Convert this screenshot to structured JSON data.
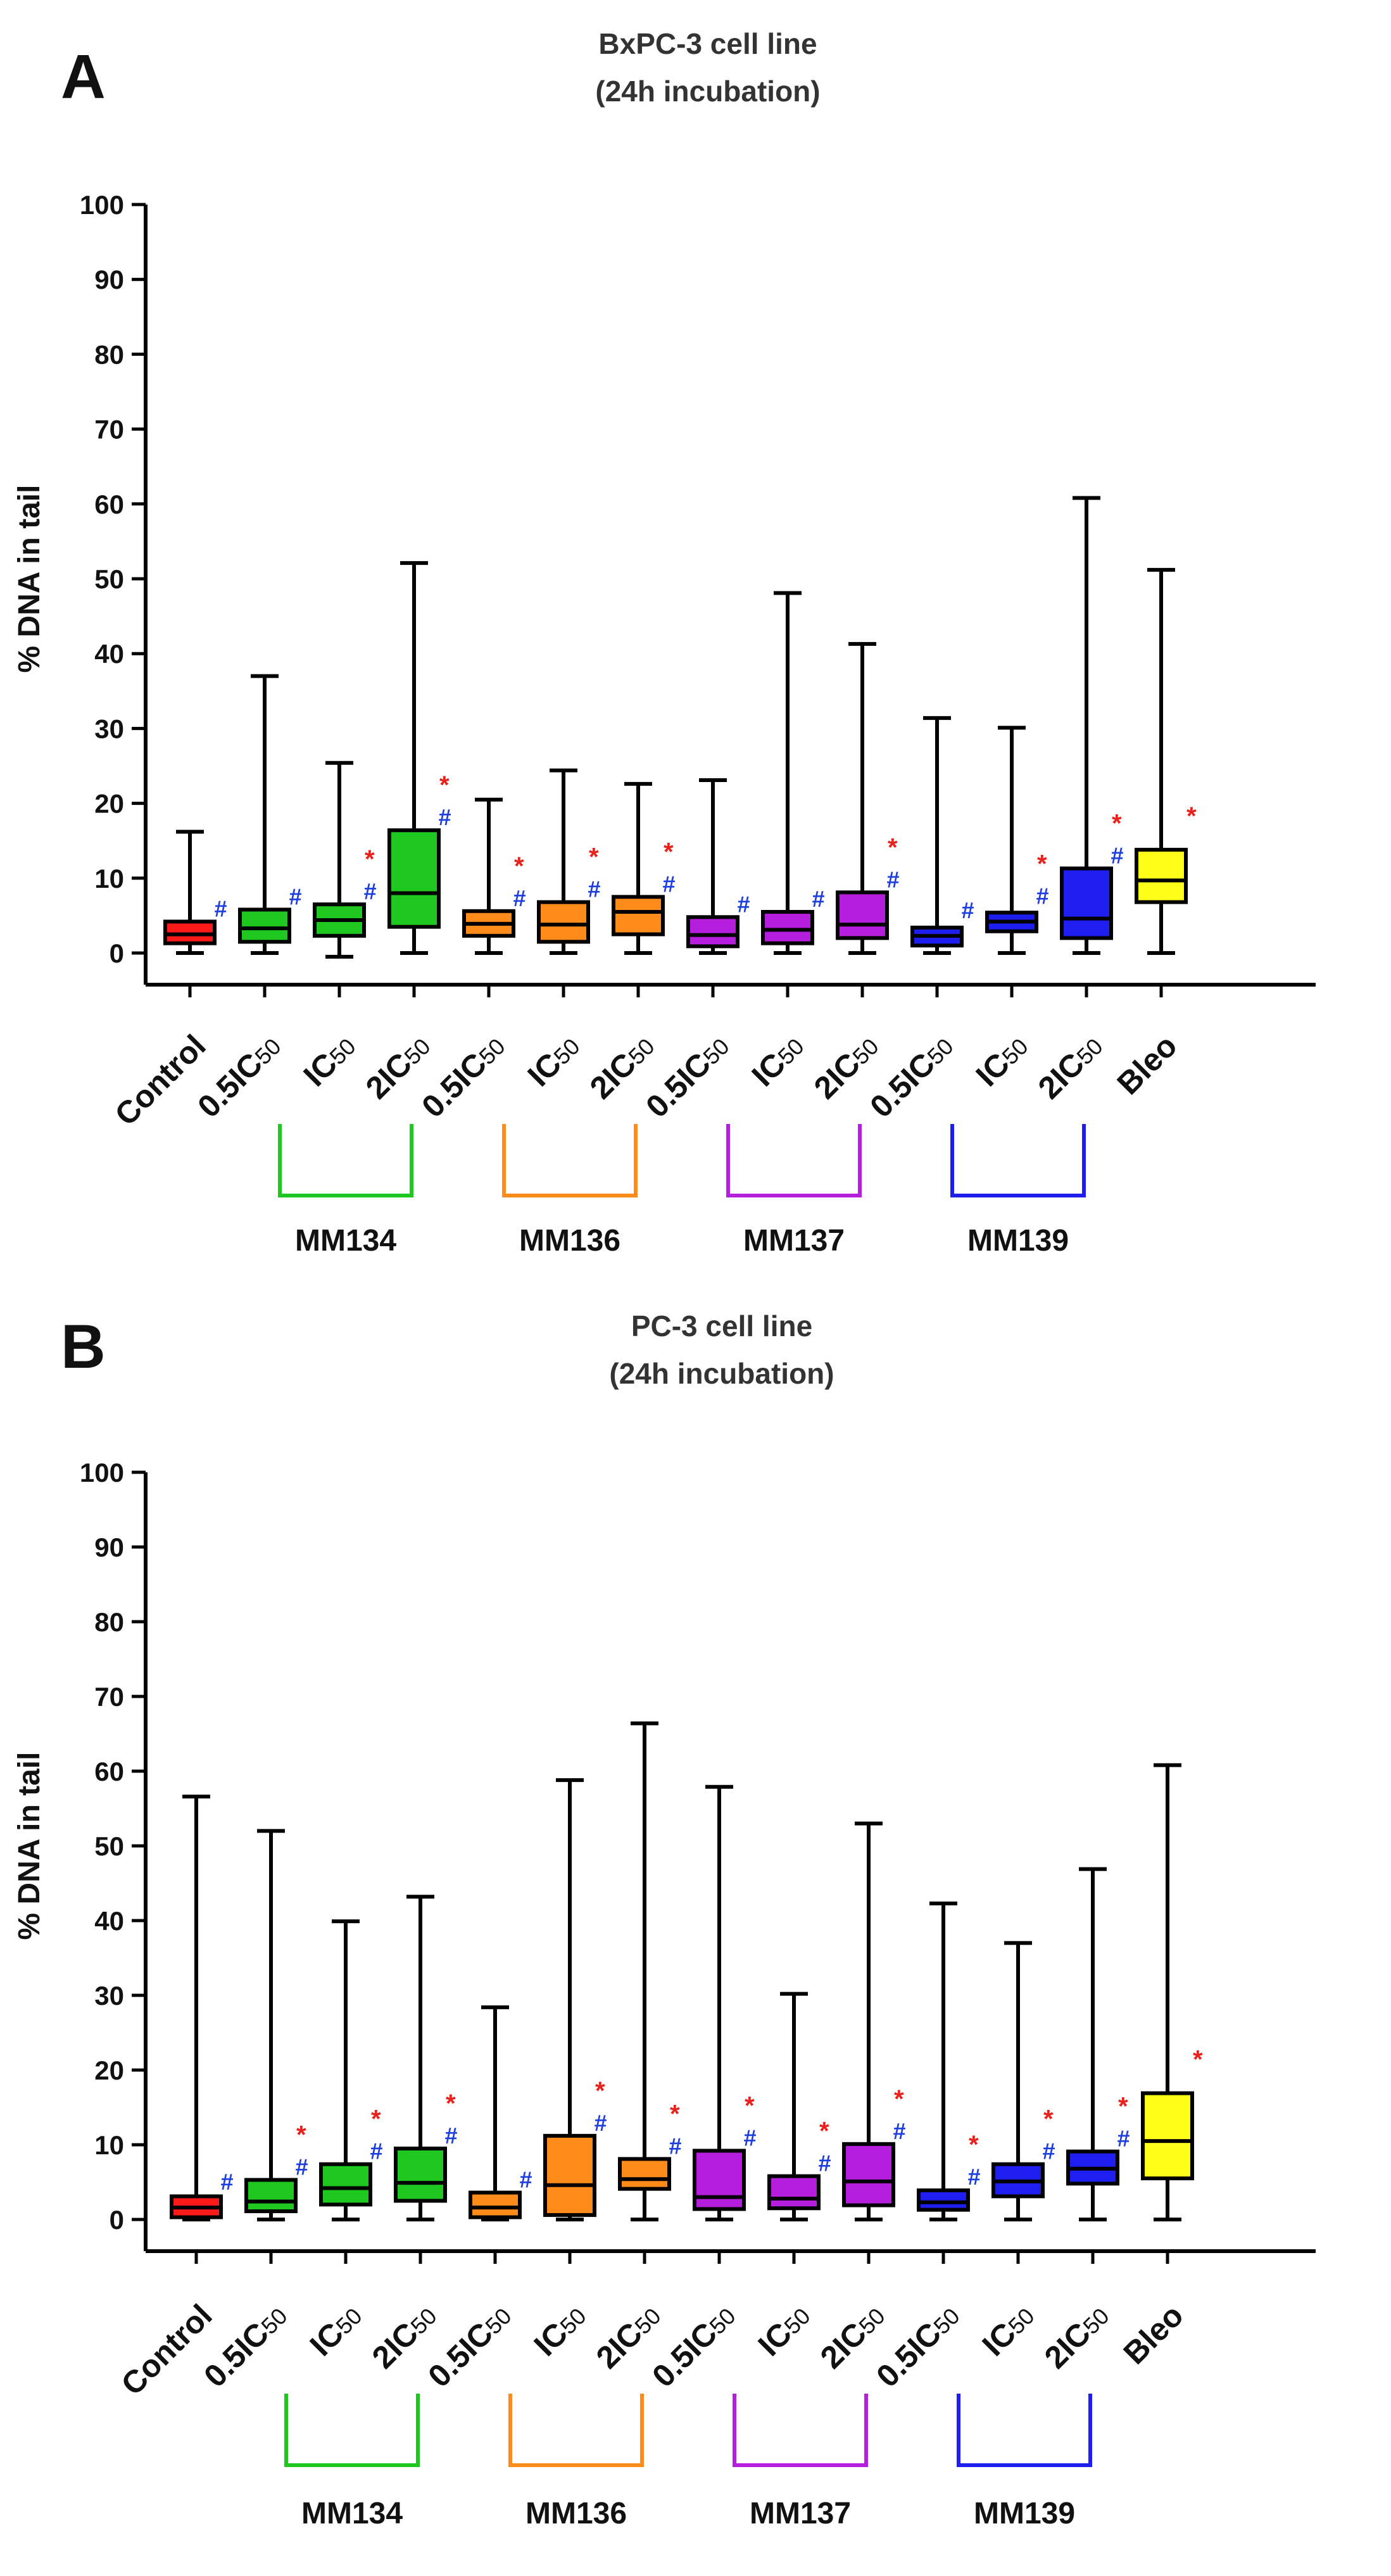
{
  "chart_data": [
    {
      "panel_label": "A",
      "type": "boxplot",
      "title": "BxPC-3 cell line",
      "subtitle": "(24h incubation)",
      "ylabel": "% DNA in tail",
      "xlabel": "",
      "ylim": [
        0,
        100
      ],
      "yticks": [
        0,
        10,
        20,
        30,
        40,
        50,
        60,
        70,
        80,
        90,
        100
      ],
      "grid": false,
      "categories": [
        {
          "main": "Control",
          "sub": ""
        },
        {
          "main": "0.5IC",
          "sub": "50"
        },
        {
          "main": "IC",
          "sub": "50"
        },
        {
          "main": "2IC",
          "sub": "50"
        },
        {
          "main": "0.5IC",
          "sub": "50"
        },
        {
          "main": "IC",
          "sub": "50"
        },
        {
          "main": "2IC",
          "sub": "50"
        },
        {
          "main": "0.5IC",
          "sub": "50"
        },
        {
          "main": "IC",
          "sub": "50"
        },
        {
          "main": "2IC",
          "sub": "50"
        },
        {
          "main": "0.5IC",
          "sub": "50"
        },
        {
          "main": "IC",
          "sub": "50"
        },
        {
          "main": "2IC",
          "sub": "50"
        },
        {
          "main": "Bleo",
          "sub": ""
        }
      ],
      "boxes": [
        {
          "min": 0,
          "q1": 1.3,
          "median": 2.5,
          "q3": 4.2,
          "max": 16.2,
          "color": "#ff1a1a",
          "star": false,
          "hash": true
        },
        {
          "min": 0,
          "q1": 1.5,
          "median": 3.3,
          "q3": 5.8,
          "max": 37.0,
          "color": "#1ec81e",
          "star": false,
          "hash": true
        },
        {
          "min": -0.5,
          "q1": 2.3,
          "median": 4.4,
          "q3": 6.5,
          "max": 25.4,
          "color": "#1ec81e",
          "star": true,
          "hash": true
        },
        {
          "min": 0,
          "q1": 3.5,
          "median": 8.0,
          "q3": 16.4,
          "max": 52.1,
          "color": "#1ec81e",
          "star": true,
          "hash": true
        },
        {
          "min": 0,
          "q1": 2.3,
          "median": 3.9,
          "q3": 5.6,
          "max": 20.5,
          "color": "#ff8c1a",
          "star": true,
          "hash": true
        },
        {
          "min": 0,
          "q1": 1.5,
          "median": 3.8,
          "q3": 6.8,
          "max": 24.4,
          "color": "#ff8c1a",
          "star": true,
          "hash": true
        },
        {
          "min": 0,
          "q1": 2.5,
          "median": 5.5,
          "q3": 7.5,
          "max": 22.6,
          "color": "#ff8c1a",
          "star": true,
          "hash": true
        },
        {
          "min": 0,
          "q1": 0.9,
          "median": 2.4,
          "q3": 4.8,
          "max": 23.1,
          "color": "#b41edc",
          "star": false,
          "hash": true
        },
        {
          "min": 0,
          "q1": 1.3,
          "median": 3.1,
          "q3": 5.5,
          "max": 48.1,
          "color": "#b41edc",
          "star": false,
          "hash": true
        },
        {
          "min": 0,
          "q1": 2.0,
          "median": 3.8,
          "q3": 8.1,
          "max": 41.3,
          "color": "#b41edc",
          "star": true,
          "hash": true
        },
        {
          "min": 0,
          "q1": 1.0,
          "median": 2.3,
          "q3": 3.4,
          "max": 31.4,
          "color": "#1e1ef0",
          "star": false,
          "hash": true
        },
        {
          "min": 0,
          "q1": 2.9,
          "median": 4.2,
          "q3": 5.4,
          "max": 30.1,
          "color": "#1e1ef0",
          "star": true,
          "hash": true
        },
        {
          "min": 0,
          "q1": 2.0,
          "median": 4.6,
          "q3": 11.3,
          "max": 60.8,
          "color": "#1e1ef0",
          "star": true,
          "hash": true
        },
        {
          "min": 0,
          "q1": 6.8,
          "median": 9.7,
          "q3": 13.8,
          "max": 51.2,
          "color": "#ffff1a",
          "star": true,
          "hash": false
        }
      ],
      "groups": [
        {
          "label": "MM134",
          "from": 1,
          "to": 3,
          "color": "#1ec81e"
        },
        {
          "label": "MM136",
          "from": 4,
          "to": 6,
          "color": "#ff8c1a"
        },
        {
          "label": "MM137",
          "from": 7,
          "to": 9,
          "color": "#b41edc"
        },
        {
          "label": "MM139",
          "from": 10,
          "to": 12,
          "color": "#1e1ef0"
        }
      ],
      "markers": {
        "star": "*",
        "hash": "#",
        "star_color": "#e8211c",
        "hash_color": "#1e3fe0"
      }
    },
    {
      "panel_label": "B",
      "type": "boxplot",
      "title": "PC-3 cell line",
      "subtitle": "(24h incubation)",
      "ylabel": "% DNA in tail",
      "xlabel": "",
      "ylim": [
        0,
        100
      ],
      "yticks": [
        0,
        10,
        20,
        30,
        40,
        50,
        60,
        70,
        80,
        90,
        100
      ],
      "grid": false,
      "categories": [
        {
          "main": "Control",
          "sub": ""
        },
        {
          "main": "0.5IC",
          "sub": "50"
        },
        {
          "main": "IC",
          "sub": "50"
        },
        {
          "main": "2IC",
          "sub": "50"
        },
        {
          "main": "0.5IC",
          "sub": "50"
        },
        {
          "main": "IC",
          "sub": "50"
        },
        {
          "main": "2IC",
          "sub": "50"
        },
        {
          "main": "0.5IC",
          "sub": "50"
        },
        {
          "main": "IC",
          "sub": "50"
        },
        {
          "main": "2IC",
          "sub": "50"
        },
        {
          "main": "0.5IC",
          "sub": "50"
        },
        {
          "main": "IC",
          "sub": "50"
        },
        {
          "main": "2IC",
          "sub": "50"
        },
        {
          "main": "Bleo",
          "sub": ""
        }
      ],
      "boxes": [
        {
          "min": 0,
          "q1": 0.3,
          "median": 1.6,
          "q3": 3.1,
          "max": 56.6,
          "color": "#ff1a1a",
          "star": false,
          "hash": true
        },
        {
          "min": 0,
          "q1": 1.1,
          "median": 2.4,
          "q3": 5.3,
          "max": 52.0,
          "color": "#1ec81e",
          "star": true,
          "hash": true
        },
        {
          "min": 0,
          "q1": 2.0,
          "median": 4.2,
          "q3": 7.4,
          "max": 39.9,
          "color": "#1ec81e",
          "star": true,
          "hash": true
        },
        {
          "min": 0,
          "q1": 2.5,
          "median": 4.9,
          "q3": 9.5,
          "max": 43.2,
          "color": "#1ec81e",
          "star": true,
          "hash": true
        },
        {
          "min": 0,
          "q1": 0.3,
          "median": 1.6,
          "q3": 3.6,
          "max": 28.4,
          "color": "#ff8c1a",
          "star": false,
          "hash": true
        },
        {
          "min": 0,
          "q1": 0.6,
          "median": 4.6,
          "q3": 11.2,
          "max": 58.8,
          "color": "#ff8c1a",
          "star": true,
          "hash": true
        },
        {
          "min": 0,
          "q1": 4.1,
          "median": 5.4,
          "q3": 8.1,
          "max": 66.4,
          "color": "#ff8c1a",
          "star": true,
          "hash": true
        },
        {
          "min": 0,
          "q1": 1.4,
          "median": 3.0,
          "q3": 9.2,
          "max": 57.9,
          "color": "#b41edc",
          "star": true,
          "hash": true
        },
        {
          "min": 0,
          "q1": 1.5,
          "median": 2.8,
          "q3": 5.8,
          "max": 30.2,
          "color": "#b41edc",
          "star": true,
          "hash": true
        },
        {
          "min": 0,
          "q1": 1.9,
          "median": 5.1,
          "q3": 10.1,
          "max": 53.0,
          "color": "#b41edc",
          "star": true,
          "hash": true
        },
        {
          "min": 0,
          "q1": 1.3,
          "median": 2.3,
          "q3": 3.9,
          "max": 42.3,
          "color": "#1e1ef0",
          "star": true,
          "hash": true
        },
        {
          "min": 0,
          "q1": 3.1,
          "median": 5.1,
          "q3": 7.4,
          "max": 37.0,
          "color": "#1e1ef0",
          "star": true,
          "hash": true
        },
        {
          "min": 0,
          "q1": 4.8,
          "median": 6.8,
          "q3": 9.1,
          "max": 46.9,
          "color": "#1e1ef0",
          "star": true,
          "hash": true
        },
        {
          "min": 0,
          "q1": 5.5,
          "median": 10.5,
          "q3": 16.9,
          "max": 60.8,
          "color": "#ffff1a",
          "star": true,
          "hash": false
        }
      ],
      "groups": [
        {
          "label": "MM134",
          "from": 1,
          "to": 3,
          "color": "#1ec81e"
        },
        {
          "label": "MM136",
          "from": 4,
          "to": 6,
          "color": "#ff8c1a"
        },
        {
          "label": "MM137",
          "from": 7,
          "to": 9,
          "color": "#b41edc"
        },
        {
          "label": "MM139",
          "from": 10,
          "to": 12,
          "color": "#1e1ef0"
        }
      ],
      "markers": {
        "star": "*",
        "hash": "#",
        "star_color": "#e8211c",
        "hash_color": "#1e3fe0"
      }
    }
  ]
}
